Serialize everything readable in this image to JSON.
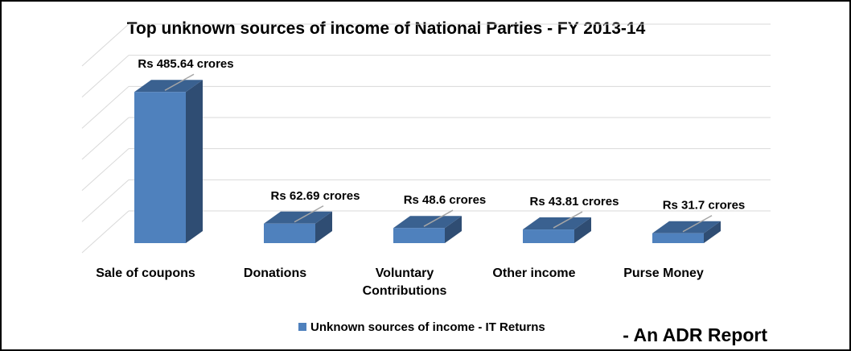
{
  "chart_data": {
    "type": "bar",
    "title": "Top unknown sources of income of National Parties - FY 2013-14",
    "categories": [
      [
        "Sale of coupons"
      ],
      [
        "Donations"
      ],
      [
        "Voluntary",
        "Contributions"
      ],
      [
        "Other income"
      ],
      [
        "Purse Money"
      ]
    ],
    "series": [
      {
        "name": "Unknown sources of income - IT Returns",
        "values": [
          485.64,
          62.69,
          48.6,
          43.81,
          31.7
        ],
        "data_labels": [
          "Rs 485.64 crores",
          "Rs 62.69 crores",
          "Rs 48.6 crores",
          "Rs 43.81 crores",
          "Rs 31.7 crores"
        ]
      }
    ],
    "ylim": [
      0,
      600
    ],
    "grid": true,
    "three_d": true,
    "legend_position": "bottom",
    "colors": {
      "bar_front": "#4F81BD",
      "bar_top": "#3A6190",
      "bar_side": "#2F4D73",
      "grid": "#D9D9D9"
    }
  },
  "footer": {
    "credit": "- An ADR Report"
  }
}
